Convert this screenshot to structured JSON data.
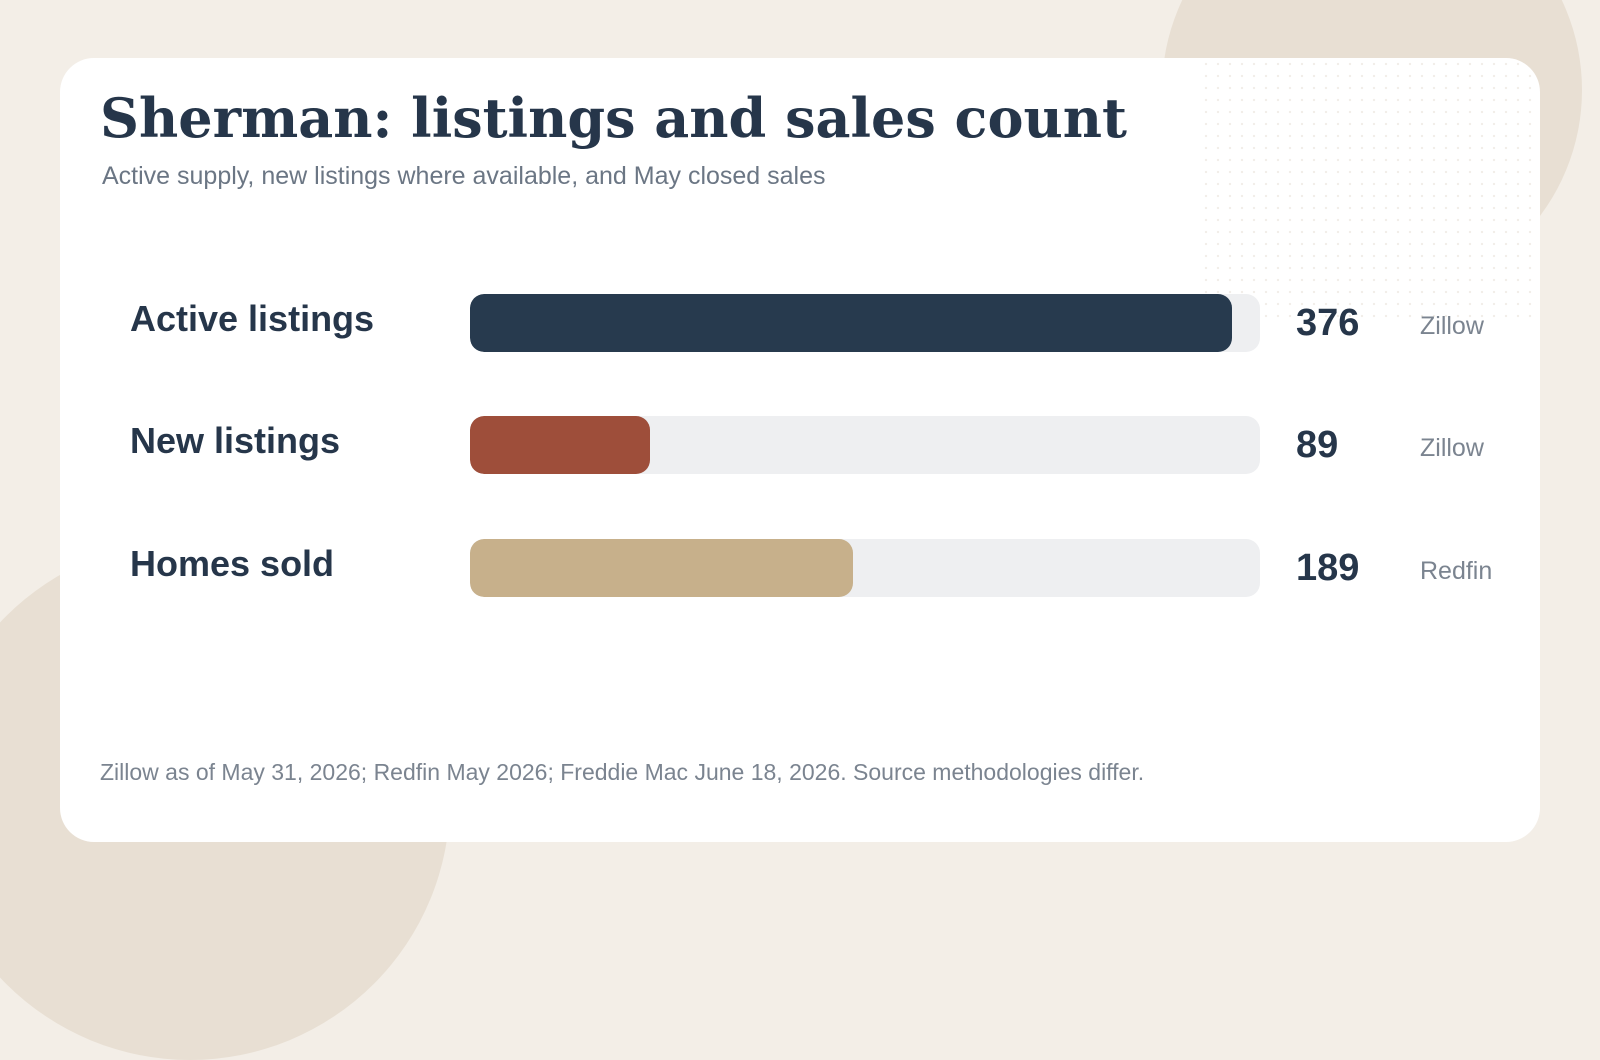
{
  "chart_data": {
    "type": "bar",
    "orientation": "horizontal",
    "title": "Sherman: listings and sales count",
    "subtitle": "Active supply, new listings where available, and May closed sales",
    "categories": [
      "Active listings",
      "New listings",
      "Homes sold"
    ],
    "values": [
      376,
      89,
      189
    ],
    "value_labels": [
      "376",
      "89",
      "189"
    ],
    "sources": [
      "Zillow",
      "Zillow",
      "Redfin"
    ],
    "colors": [
      "#273a4e",
      "#9e4e3a",
      "#c7b08b"
    ],
    "track_color": "#eeeff1",
    "xlim": [
      0,
      390
    ],
    "grid": false,
    "legend": "none"
  },
  "footnote": "Zillow as of May 31, 2026; Redfin May 2026; Freddie Mac June 18, 2026. Source methodologies differ."
}
